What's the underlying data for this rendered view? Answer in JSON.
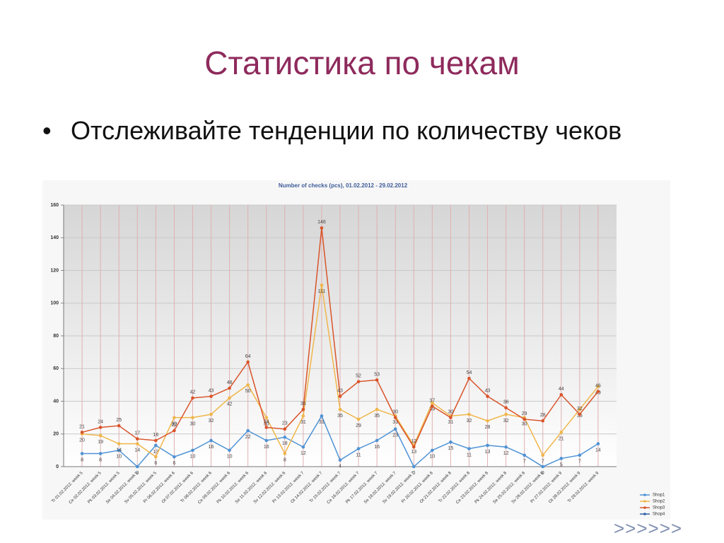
{
  "slide": {
    "title": "Статистика по чекам",
    "bullet": "Отслеживайте тенденции по количеству чеков",
    "nav": ">>>>>>"
  },
  "chart_data": {
    "type": "line",
    "title": "Number of checks (pcs), 01.02.2012 - 29.02.2012",
    "categories": [
      "Tr 01.02.2012. week 5",
      "Ce 02.02.2012. week 5",
      "Pk 03.02.2012. week 5",
      "Se 04.02.2012. week 5",
      "Sv 05.02.2012. week 5",
      "Pr 06.02.2012. week 6",
      "Ot 07.02.2012. week 6",
      "Tr 08.02.2012. week 6",
      "Ce 09.02.2012. week 6",
      "Pk 10.02.2012. week 6",
      "Se 11.02.2012. week 6",
      "Sv 12.02.2012. week 6",
      "Pr 13.02.2012. week 7",
      "Ot 14.02.2012. week 7",
      "Tr 15.02.2012. week 7",
      "Ce 16.02.2012. week 7",
      "Pk 17.02.2012. week 7",
      "Se 18.02.2012. week 7",
      "Sv 19.02.2012. week 7",
      "Pr 20.02.2012. week 8",
      "Ot 21.02.2012. week 8",
      "Tr 22.02.2012. week 8",
      "Ce 23.02.2012. week 8",
      "Pk 24.02.2012. week 8",
      "Se 25.02.2012. week 8",
      "Sv 26.02.2012. week 8",
      "Pr 27.02.2012. week 9",
      "Ot 28.02.2012. week 9",
      "Tr 29.02.2012. week 9"
    ],
    "series": [
      {
        "name": "Shop1",
        "color": "#4f93d6",
        "values": [
          8,
          8,
          10,
          0,
          13,
          6,
          10,
          16,
          10,
          22,
          16,
          18,
          12,
          31,
          4,
          11,
          16,
          23,
          0,
          10,
          15,
          11,
          13,
          12,
          7,
          0,
          5,
          7,
          14
        ]
      },
      {
        "name": "Shop2",
        "color": "#f0b64a",
        "values": [
          20,
          19,
          14,
          14,
          6,
          30,
          30,
          32,
          42,
          50,
          30,
          8,
          31,
          111,
          35,
          29,
          35,
          31,
          13,
          39,
          31,
          32,
          28,
          32,
          30,
          7,
          21,
          35,
          49
        ]
      },
      {
        "name": "Shop3",
        "color": "#d9542a",
        "values": [
          21,
          24,
          25,
          17,
          16,
          22,
          42,
          43,
          48,
          64,
          24,
          23,
          35,
          146,
          43,
          52,
          53,
          30,
          12,
          37,
          30,
          54,
          43,
          36,
          29,
          28,
          44,
          32,
          46
        ]
      },
      {
        "name": "Shop4",
        "color": "#2f62a8",
        "values": [
          null,
          null,
          null,
          null,
          null,
          null,
          null,
          null,
          null,
          null,
          null,
          null,
          null,
          null,
          null,
          null,
          null,
          null,
          null,
          null,
          null,
          null,
          null,
          null,
          null,
          null,
          null,
          null,
          null
        ]
      }
    ],
    "ylim": [
      0,
      160
    ],
    "yticks": [
      0,
      20,
      40,
      60,
      80,
      100,
      120,
      140,
      160
    ],
    "grid": true,
    "legend": "bottom-right"
  }
}
